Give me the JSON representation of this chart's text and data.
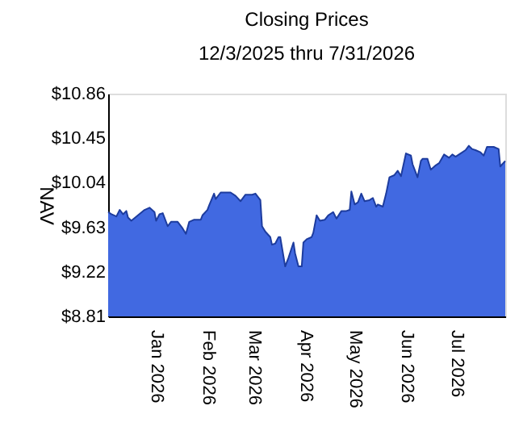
{
  "chart_data": {
    "type": "area",
    "title": "Closing Prices",
    "subtitle": "12/3/2025 thru 7/31/2026",
    "ylabel": "NAV",
    "x": [
      "2025-12-03",
      "2025-12-05",
      "2025-12-08",
      "2025-12-10",
      "2025-12-12",
      "2025-12-14",
      "2025-12-15",
      "2025-12-17",
      "2025-12-21",
      "2025-12-25",
      "2025-12-28",
      "2025-12-31",
      "2026-01-01",
      "2026-01-03",
      "2026-01-05",
      "2026-01-08",
      "2026-01-10",
      "2026-01-14",
      "2026-01-17",
      "2026-01-19",
      "2026-01-21",
      "2026-01-24",
      "2026-01-28",
      "2026-01-29",
      "2026-02-01",
      "2026-02-02",
      "2026-02-05",
      "2026-02-06",
      "2026-02-09",
      "2026-02-12",
      "2026-02-15",
      "2026-02-18",
      "2026-02-21",
      "2026-02-24",
      "2026-02-28",
      "2026-03-02",
      "2026-03-05",
      "2026-03-06",
      "2026-03-08",
      "2026-03-11",
      "2026-03-12",
      "2026-03-14",
      "2026-03-16",
      "2026-03-17",
      "2026-03-20",
      "2026-03-22",
      "2026-03-25",
      "2026-03-26",
      "2026-03-28",
      "2026-03-30",
      "2026-03-31",
      "2026-04-02",
      "2026-04-05",
      "2026-04-06",
      "2026-04-08",
      "2026-04-10",
      "2026-04-13",
      "2026-04-15",
      "2026-04-18",
      "2026-04-20",
      "2026-04-23",
      "2026-04-26",
      "2026-04-28",
      "2026-04-29",
      "2026-05-01",
      "2026-05-03",
      "2026-05-05",
      "2026-05-07",
      "2026-05-10",
      "2026-05-12",
      "2026-05-14",
      "2026-05-15",
      "2026-05-18",
      "2026-05-20",
      "2026-05-22",
      "2026-05-25",
      "2026-05-27",
      "2026-05-29",
      "2026-06-01",
      "2026-06-04",
      "2026-06-05",
      "2026-06-08",
      "2026-06-10",
      "2026-06-11",
      "2026-06-14",
      "2026-06-16",
      "2026-06-19",
      "2026-06-21",
      "2026-06-24",
      "2026-06-27",
      "2026-06-29",
      "2026-07-01",
      "2026-07-04",
      "2026-07-07",
      "2026-07-09",
      "2026-07-11",
      "2026-07-13",
      "2026-07-16",
      "2026-07-18",
      "2026-07-20",
      "2026-07-22",
      "2026-07-24",
      "2026-07-27",
      "2026-07-28",
      "2026-07-31"
    ],
    "series": [
      {
        "color": "#4169e1",
        "values": [
          9.77,
          9.75,
          9.73,
          9.79,
          9.75,
          9.78,
          9.72,
          9.69,
          9.74,
          9.79,
          9.81,
          9.77,
          9.69,
          9.75,
          9.76,
          9.64,
          9.68,
          9.68,
          9.62,
          9.57,
          9.68,
          9.7,
          9.7,
          9.74,
          9.79,
          9.83,
          9.94,
          9.89,
          9.95,
          9.95,
          9.95,
          9.92,
          9.87,
          9.93,
          9.93,
          9.94,
          9.88,
          9.64,
          9.59,
          9.54,
          9.47,
          9.48,
          9.54,
          9.54,
          9.27,
          9.35,
          9.49,
          9.39,
          9.27,
          9.27,
          9.49,
          9.52,
          9.54,
          9.58,
          9.74,
          9.69,
          9.7,
          9.74,
          9.77,
          9.71,
          9.78,
          9.78,
          9.79,
          9.96,
          9.84,
          9.86,
          9.94,
          9.87,
          9.88,
          9.9,
          9.82,
          9.84,
          9.82,
          9.94,
          10.09,
          10.11,
          10.15,
          10.1,
          10.31,
          10.29,
          10.21,
          10.09,
          10.24,
          10.26,
          10.26,
          10.16,
          10.2,
          10.22,
          10.3,
          10.27,
          10.3,
          10.28,
          10.31,
          10.34,
          10.38,
          10.35,
          10.34,
          10.32,
          10.29,
          10.37,
          10.37,
          10.37,
          10.35,
          10.19,
          10.24
        ]
      }
    ],
    "xlim": [
      "2025-12-03",
      "2026-07-31"
    ],
    "xticks": [
      {
        "value": "2026-01-01",
        "label": "Jan  2026"
      },
      {
        "value": "2026-02-01",
        "label": "Feb  2026"
      },
      {
        "value": "2026-03-01",
        "label": "Mar  2026"
      },
      {
        "value": "2026-04-01",
        "label": "Apr  2026"
      },
      {
        "value": "2026-05-01",
        "label": "May  2026"
      },
      {
        "value": "2026-06-01",
        "label": "Jun  2026"
      },
      {
        "value": "2026-07-01",
        "label": "Jul  2026"
      }
    ],
    "ylim": [
      8.81,
      10.86
    ],
    "yticks": [
      {
        "value": 8.81,
        "label": "$8.81"
      },
      {
        "value": 9.22,
        "label": "$9.22"
      },
      {
        "value": 9.63,
        "label": "$9.63"
      },
      {
        "value": 10.04,
        "label": "$10.04"
      },
      {
        "value": 10.45,
        "label": "$10.45"
      },
      {
        "value": 10.86,
        "label": "$10.86"
      }
    ],
    "grid": false
  }
}
